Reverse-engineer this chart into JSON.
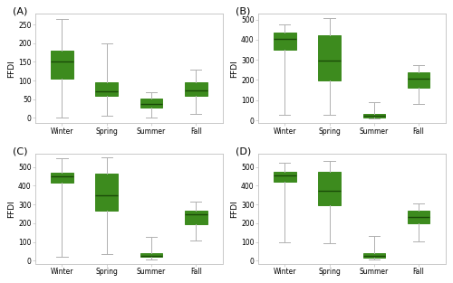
{
  "panels": [
    "A",
    "B",
    "C",
    "D"
  ],
  "seasons": [
    "Winter",
    "Spring",
    "Summer",
    "Fall"
  ],
  "ylabel": "FFDI",
  "box_color": "#3d8b1e",
  "median_color": "#1a4a08",
  "whisker_color": "#b0b0b0",
  "cap_color": "#b0b0b0",
  "box_data": {
    "A": {
      "Winter": {
        "q1": 105,
        "med": 150,
        "q3": 180,
        "whislo": 0,
        "whishi": 265
      },
      "Spring": {
        "q1": 60,
        "med": 70,
        "q3": 95,
        "whislo": 5,
        "whishi": 200
      },
      "Summer": {
        "q1": 28,
        "med": 38,
        "q3": 52,
        "whislo": 0,
        "whishi": 68
      },
      "Fall": {
        "q1": 60,
        "med": 73,
        "q3": 95,
        "whislo": 10,
        "whishi": 130
      }
    },
    "B": {
      "Winter": {
        "q1": 350,
        "med": 405,
        "q3": 435,
        "whislo": 25,
        "whishi": 475
      },
      "Spring": {
        "q1": 198,
        "med": 295,
        "q3": 420,
        "whislo": 28,
        "whishi": 505
      },
      "Summer": {
        "q1": 15,
        "med": 23,
        "q3": 32,
        "whislo": 10,
        "whishi": 90
      },
      "Fall": {
        "q1": 162,
        "med": 205,
        "q3": 238,
        "whislo": 80,
        "whishi": 275
      }
    },
    "C": {
      "Winter": {
        "q1": 415,
        "med": 450,
        "q3": 470,
        "whislo": 20,
        "whishi": 545
      },
      "Spring": {
        "q1": 265,
        "med": 350,
        "q3": 465,
        "whislo": 35,
        "whishi": 550
      },
      "Summer": {
        "q1": 20,
        "med": 28,
        "q3": 42,
        "whislo": 8,
        "whishi": 125
      },
      "Fall": {
        "q1": 195,
        "med": 248,
        "q3": 268,
        "whislo": 110,
        "whishi": 315
      }
    },
    "D": {
      "Winter": {
        "q1": 420,
        "med": 455,
        "q3": 475,
        "whislo": 100,
        "whishi": 520
      },
      "Spring": {
        "q1": 295,
        "med": 375,
        "q3": 475,
        "whislo": 95,
        "whishi": 530
      },
      "Summer": {
        "q1": 18,
        "med": 26,
        "q3": 38,
        "whislo": 8,
        "whishi": 130
      },
      "Fall": {
        "q1": 200,
        "med": 235,
        "q3": 265,
        "whislo": 105,
        "whishi": 305
      }
    }
  },
  "ylims": {
    "A": [
      -15,
      280
    ],
    "B": [
      -15,
      530
    ],
    "C": [
      -15,
      570
    ],
    "D": [
      -15,
      570
    ]
  },
  "yticks": {
    "A": [
      0,
      50,
      100,
      150,
      200,
      250
    ],
    "B": [
      0,
      100,
      200,
      300,
      400,
      500
    ],
    "C": [
      0,
      100,
      200,
      300,
      400,
      500
    ],
    "D": [
      0,
      100,
      200,
      300,
      400,
      500
    ]
  },
  "fig_bg": "#ffffff",
  "ax_bg": "#ffffff",
  "spine_color": "#c0c0c0",
  "panel_label_fontsize": 8,
  "tick_fontsize": 5.5,
  "ylabel_fontsize": 6.5,
  "box_width": 0.5
}
